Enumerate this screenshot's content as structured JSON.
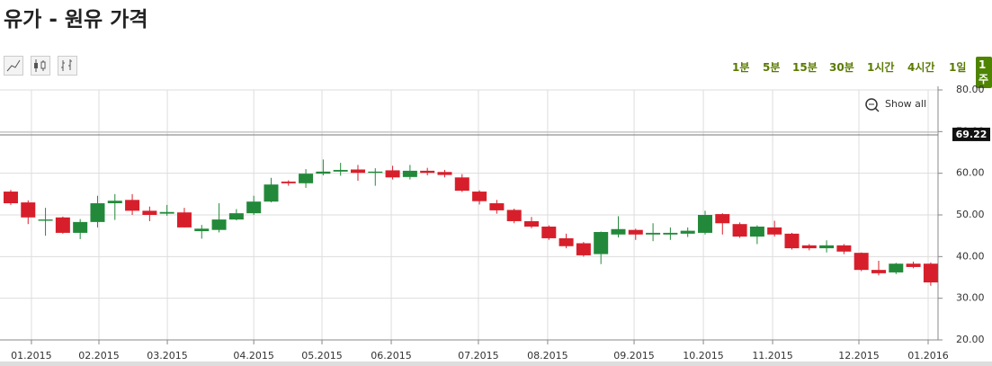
{
  "header": {
    "title": "유가 - 원유 가격"
  },
  "toolbar": {
    "intervals": [
      "1분",
      "5분",
      "15분",
      "30분",
      "1시간",
      "4시간",
      "1일",
      "1주"
    ],
    "active": 7,
    "show_all": "Show all"
  },
  "chart_data": {
    "type": "candlestick",
    "open": [
      55.6,
      53.0,
      48.6,
      49.4,
      45.7,
      48.3,
      52.8,
      53.6,
      51.0,
      50.3,
      50.6,
      46.1,
      46.4,
      48.9,
      50.4,
      53.2,
      58.0,
      57.6,
      59.9,
      60.4,
      60.9,
      60.1,
      60.7,
      59.1,
      60.6,
      60.3,
      59.0,
      55.6,
      52.8,
      51.2,
      48.5,
      47.2,
      44.4,
      43.2,
      40.6,
      45.3,
      46.4,
      45.3,
      45.3,
      45.5,
      45.7,
      50.2,
      47.8,
      44.8,
      47.0,
      45.5,
      42.7,
      42.0,
      42.7,
      40.9,
      36.8,
      36.2,
      38.3,
      38.3
    ],
    "high": [
      56.0,
      53.5,
      51.7,
      49.6,
      49.0,
      54.6,
      55.0,
      55.0,
      52.0,
      52.4,
      51.7,
      47.6,
      52.8,
      51.4,
      54.6,
      58.9,
      58.3,
      61.0,
      63.3,
      62.5,
      62.0,
      61.2,
      61.8,
      62.0,
      61.3,
      60.8,
      59.8,
      55.9,
      53.6,
      51.5,
      49.5,
      47.5,
      45.5,
      43.5,
      46.0,
      49.7,
      46.7,
      48.0,
      47.0,
      47.0,
      51.0,
      50.4,
      48.2,
      47.5,
      48.6,
      45.7,
      43.0,
      43.9,
      43.0,
      41.0,
      39.0,
      38.5,
      38.8,
      38.6
    ],
    "low": [
      52.4,
      47.8,
      45.0,
      45.5,
      44.2,
      47.0,
      48.8,
      50.0,
      48.5,
      49.8,
      47.0,
      44.3,
      45.8,
      48.7,
      50.0,
      53.0,
      57.0,
      56.5,
      59.5,
      59.4,
      58.2,
      57.0,
      58.5,
      58.5,
      59.5,
      59.0,
      55.5,
      52.5,
      50.3,
      48.0,
      46.8,
      44.0,
      42.0,
      40.0,
      38.2,
      44.6,
      44.0,
      43.7,
      44.0,
      44.7,
      45.3,
      45.3,
      44.5,
      43.0,
      44.8,
      41.7,
      41.5,
      41.0,
      40.6,
      36.5,
      35.5,
      35.8,
      37.2,
      33.0
    ],
    "close": [
      52.8,
      49.4,
      48.9,
      45.7,
      48.3,
      52.8,
      53.4,
      51.0,
      50.0,
      50.7,
      47.0,
      46.7,
      48.9,
      50.4,
      53.2,
      57.3,
      57.6,
      59.9,
      60.4,
      60.8,
      60.1,
      60.4,
      59.0,
      60.6,
      60.1,
      59.6,
      55.8,
      53.3,
      51.1,
      48.5,
      47.2,
      44.4,
      42.5,
      40.3,
      45.9,
      46.6,
      45.3,
      45.7,
      45.7,
      46.2,
      50.0,
      48.0,
      44.8,
      47.2,
      45.3,
      42.0,
      42.0,
      42.7,
      41.2,
      36.8,
      36.0,
      38.3,
      37.5,
      33.8
    ],
    "up_color": "#23893a",
    "down_color": "#d71f2b",
    "ylim": [
      20,
      80
    ],
    "yticks": [
      {
        "value": 20,
        "label": "20.00"
      },
      {
        "value": 30,
        "label": "30.00"
      },
      {
        "value": 40,
        "label": "40.00"
      },
      {
        "value": 50,
        "label": "50.00"
      },
      {
        "value": 60,
        "label": "60.00"
      },
      {
        "value": 70,
        "label": "70.00"
      },
      {
        "value": 80,
        "label": "80.00"
      }
    ],
    "xlim": [
      -0.62,
      53.42
    ],
    "xticks": [
      {
        "value": 1.19,
        "label": "01.2015"
      },
      {
        "value": 5.08,
        "label": "02.2015"
      },
      {
        "value": 9.02,
        "label": "03.2015"
      },
      {
        "value": 14.0,
        "label": "04.2015"
      },
      {
        "value": 17.93,
        "label": "05.2015"
      },
      {
        "value": 21.92,
        "label": "06.2015"
      },
      {
        "value": 26.94,
        "label": "07.2015"
      },
      {
        "value": 30.93,
        "label": "08.2015"
      },
      {
        "value": 35.91,
        "label": "09.2015"
      },
      {
        "value": 39.9,
        "label": "10.2015"
      },
      {
        "value": 43.89,
        "label": "11.2015"
      },
      {
        "value": 48.86,
        "label": "12.2015"
      },
      {
        "value": 52.85,
        "label": "01.2016"
      }
    ],
    "grid": true,
    "price_line": 69.22
  }
}
